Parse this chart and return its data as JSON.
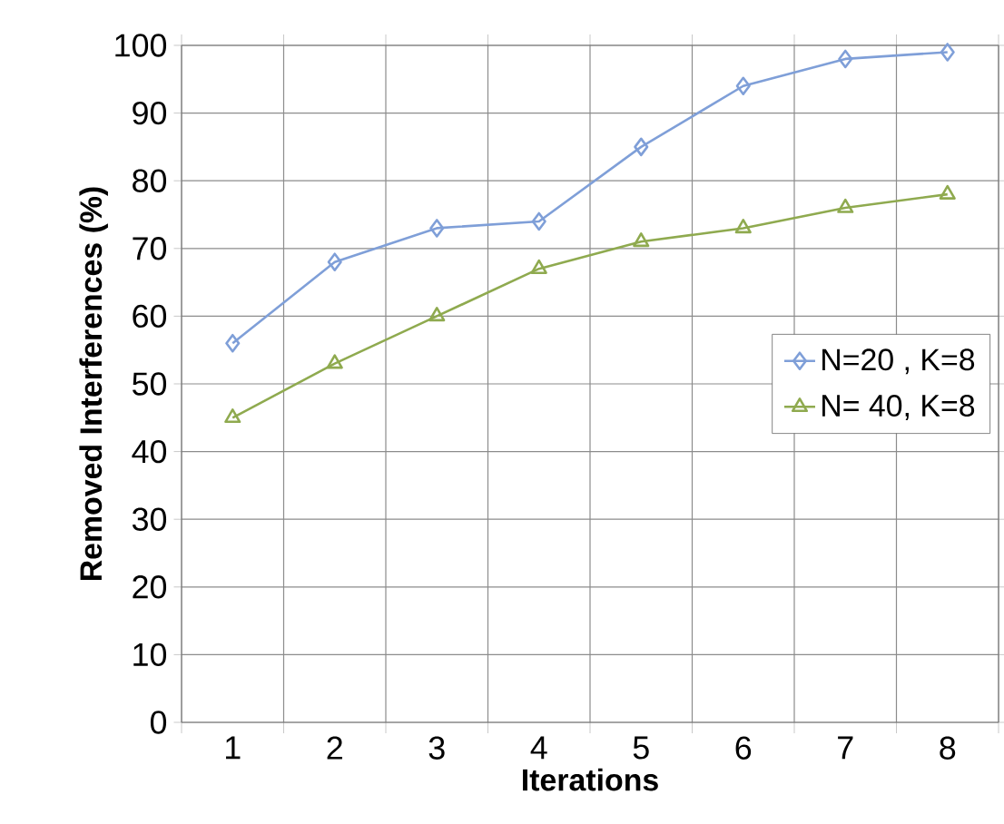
{
  "chart_data": {
    "type": "line",
    "xlabel": "Iterations",
    "ylabel": "Removed Interferences (%)",
    "categories": [
      "1",
      "2",
      "3",
      "4",
      "5",
      "6",
      "7",
      "8"
    ],
    "series": [
      {
        "name": "N=20 , K=8",
        "color": "#7f9fd8",
        "marker": "diamond",
        "values": [
          56,
          68,
          73,
          74,
          85,
          94,
          98,
          99
        ]
      },
      {
        "name": "N= 40,  K=8",
        "color": "#8faa4f",
        "marker": "triangle",
        "values": [
          45,
          53,
          60,
          67,
          71,
          73,
          76,
          78
        ]
      }
    ],
    "ylim": [
      0,
      100
    ],
    "yticks": [
      0,
      10,
      20,
      30,
      40,
      50,
      60,
      70,
      80,
      90,
      100
    ],
    "grid": true,
    "legend": "right",
    "line_style": "solid"
  }
}
